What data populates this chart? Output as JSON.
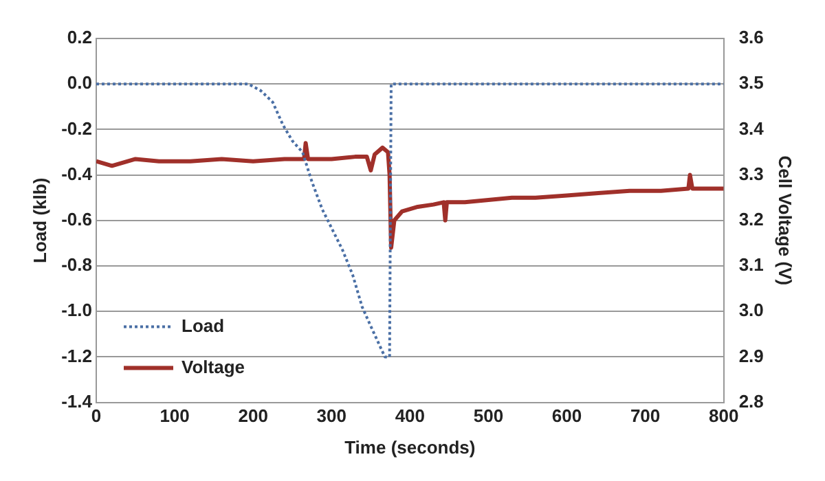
{
  "chart_data": {
    "type": "line",
    "xlabel": "Time (seconds)",
    "ylabel": "Load (klb)",
    "y2label": "Cell Voltage (V)",
    "xlim": [
      0,
      800
    ],
    "xticks": [
      0,
      100,
      200,
      300,
      400,
      500,
      600,
      700,
      800
    ],
    "ylim": [
      -1.4,
      0.2
    ],
    "yticks": [
      -1.4,
      -1.2,
      {
        "value": -1,
        "label": "-1.0"
      },
      -0.8,
      -0.6,
      -0.4,
      -0.2,
      {
        "value": 0,
        "label": "0.0"
      },
      0.2
    ],
    "y2lim": [
      2.8,
      3.6
    ],
    "y2ticks": [
      2.8,
      2.9,
      {
        "value": 3,
        "label": "3.0"
      },
      3.1,
      3.2,
      3.3,
      3.4,
      3.5,
      3.6
    ],
    "grid": "y",
    "legend": "bottom left",
    "marker": "none",
    "series": [
      {
        "name": "Load",
        "color": "#4a6fa5",
        "line_style": "dotted",
        "x": [
          0,
          50,
          100,
          150,
          194,
          210,
          225,
          238,
          250,
          263,
          275,
          288,
          301,
          314,
          327,
          339,
          352,
          368,
          374,
          376,
          400,
          500,
          600,
          700,
          800
        ],
        "values": [
          0,
          0,
          0,
          0,
          0,
          -0.03,
          -0.08,
          -0.18,
          -0.25,
          -0.3,
          -0.43,
          -0.55,
          -0.64,
          -0.73,
          -0.84,
          -0.98,
          -1.08,
          -1.2,
          -1.2,
          0,
          0,
          0,
          0,
          0,
          0
        ]
      },
      {
        "name": "Voltage",
        "color": "#a0302a",
        "line_style": "solid",
        "axis": "y2",
        "x": [
          0,
          20,
          50,
          80,
          120,
          160,
          200,
          240,
          265,
          267,
          270,
          300,
          330,
          345,
          350,
          355,
          365,
          372,
          374,
          376,
          380,
          390,
          410,
          430,
          443,
          445,
          447,
          470,
          500,
          530,
          560,
          600,
          640,
          680,
          720,
          755,
          757,
          760,
          780,
          800
        ],
        "values": [
          3.33,
          3.32,
          3.335,
          3.33,
          3.33,
          3.335,
          3.33,
          3.335,
          3.335,
          3.37,
          3.335,
          3.335,
          3.34,
          3.34,
          3.31,
          3.345,
          3.36,
          3.35,
          3.3,
          3.14,
          3.2,
          3.22,
          3.23,
          3.235,
          3.24,
          3.2,
          3.24,
          3.24,
          3.245,
          3.25,
          3.25,
          3.255,
          3.26,
          3.265,
          3.265,
          3.27,
          3.3,
          3.27,
          3.27,
          3.27
        ]
      }
    ]
  }
}
